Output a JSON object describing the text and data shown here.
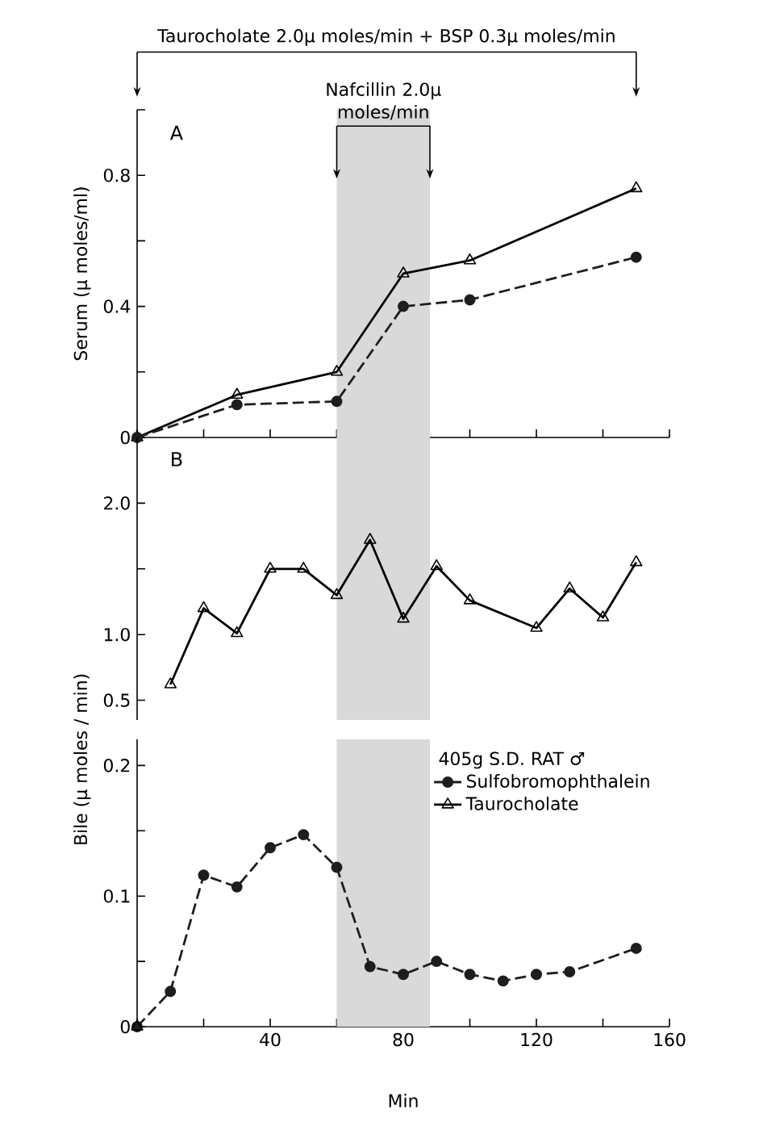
{
  "chart_data": [
    {
      "type": "line",
      "ylabel": "Serum (μ moles/ml)",
      "annotations": [
        "A",
        "Taurocholate 2.0μ moles/min + BSP 0.3μ moles/min"
      ],
      "x": [
        0,
        30,
        60,
        80,
        100,
        150
      ],
      "series": [
        {
          "color": "#000000",
          "marker": "triangle",
          "line_style": "solid",
          "values": [
            0,
            0.13,
            0.2,
            0.5,
            0.54,
            0.76
          ]
        },
        {
          "color": "#1e1e1e",
          "marker": "circle",
          "line_style": "dashed",
          "values": [
            0,
            0.1,
            0.11,
            0.4,
            0.42,
            0.55
          ]
        }
      ],
      "xlim": [
        0,
        160
      ],
      "ylim": [
        0,
        1.0
      ],
      "xticks": [
        {
          "value": 0,
          "label": null
        },
        {
          "value": 20,
          "label": null
        },
        {
          "value": 40,
          "label": null
        },
        {
          "value": 60,
          "label": null
        },
        {
          "value": 80,
          "label": null
        },
        {
          "value": 100,
          "label": null
        },
        {
          "value": 120,
          "label": null
        },
        {
          "value": 140,
          "label": null
        },
        {
          "value": 160,
          "label": null
        }
      ],
      "yticks": [
        0,
        {
          "value": 0.2,
          "label": null
        },
        {
          "value": 0.4,
          "label": "0.4"
        },
        {
          "value": 0.6,
          "label": null
        },
        {
          "value": 0.8,
          "label": "0.8"
        },
        {
          "value": 1.0,
          "label": null
        }
      ],
      "tick_labels": "y",
      "bands": [
        {
          "axis": "x",
          "from": 60,
          "to": 88,
          "label": "Nafcillin 2.0μ moles/min",
          "color": "#d9d9d9"
        }
      ]
    },
    {
      "type": "line",
      "annotations": [
        "B"
      ],
      "x": [
        10,
        20,
        30,
        40,
        50,
        60,
        70,
        80,
        90,
        100,
        120,
        130,
        140,
        150
      ],
      "series": [
        {
          "color": "#000000",
          "marker": "triangle",
          "line_style": "solid",
          "values": [
            0.62,
            1.2,
            1.01,
            1.5,
            1.5,
            1.3,
            1.72,
            1.12,
            1.52,
            1.26,
            1.05,
            1.35,
            1.13,
            1.55
          ]
        }
      ],
      "xlim": [
        0,
        160
      ],
      "ylim": [
        0.35,
        2.5
      ],
      "yticks": [
        {
          "value": 0.5,
          "label": "0.5"
        },
        {
          "value": 1.0,
          "label": "1.0"
        },
        {
          "value": 1.5,
          "label": null
        },
        {
          "value": 2.0,
          "label": "2.0"
        }
      ],
      "tick_labels": "y",
      "bands": [
        {
          "axis": "x",
          "from": 60,
          "to": 88,
          "color": "#d9d9d9"
        }
      ]
    },
    {
      "type": "line",
      "xlabel": "Min",
      "ylabel": "Bile (μ moles / min)",
      "legend_title": "405g S.D. RAT ♂",
      "legend": "top right",
      "x": [
        0,
        10,
        20,
        30,
        40,
        50,
        60,
        70,
        80,
        90,
        100,
        110,
        120,
        130,
        150
      ],
      "series": [
        {
          "name": "Sulfobromophthalein",
          "color": "#1e1e1e",
          "marker": "circle",
          "line_style": "dashed",
          "values": [
            0,
            0.027,
            0.116,
            0.107,
            0.137,
            0.147,
            0.122,
            0.046,
            0.04,
            0.05,
            0.04,
            0.035,
            0.04,
            0.042,
            0.06
          ]
        },
        {
          "name": "Taurocholate",
          "color": "#000000",
          "marker": "triangle",
          "line_style": "solid",
          "x": [
            0
          ],
          "values": [
            0
          ]
        }
      ],
      "xlim": [
        0,
        160
      ],
      "ylim": [
        0,
        0.22
      ],
      "xticks": [
        {
          "value": 0,
          "label": null
        },
        {
          "value": 20,
          "label": null
        },
        40,
        {
          "value": 60,
          "label": null
        },
        80,
        {
          "value": 100,
          "label": null
        },
        120,
        {
          "value": 140,
          "label": null
        },
        160
      ],
      "yticks": [
        0,
        {
          "value": 0.05,
          "label": null
        },
        {
          "value": 0.1,
          "label": "0.1"
        },
        {
          "value": 0.15,
          "label": null
        },
        {
          "value": 0.2,
          "label": "0.2"
        }
      ],
      "bands": [
        {
          "axis": "x",
          "from": 60,
          "to": 88,
          "color": "#d9d9d9"
        }
      ]
    }
  ]
}
